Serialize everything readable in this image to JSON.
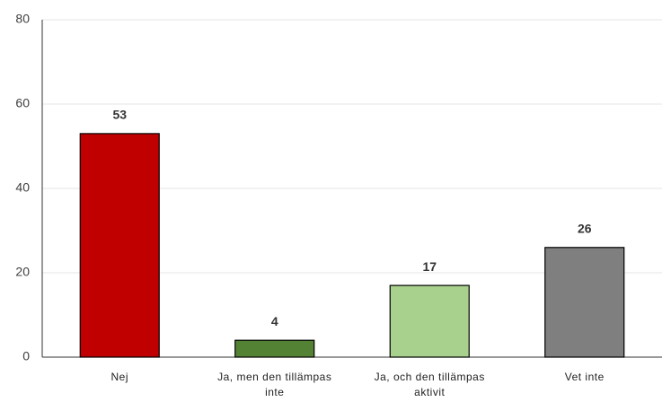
{
  "chart_data": {
    "type": "bar",
    "categories": [
      "Nej",
      "Ja, men den tillämpas inte",
      "Ja, och den tillämpas aktivit",
      "Vet inte"
    ],
    "values": [
      53,
      4,
      17,
      26
    ],
    "colors": [
      "#c00000",
      "#548235",
      "#a9d18e",
      "#7f7f7f"
    ],
    "ylim": [
      0,
      80
    ],
    "yticks": [
      0,
      20,
      40,
      60,
      80
    ],
    "grid": true
  }
}
